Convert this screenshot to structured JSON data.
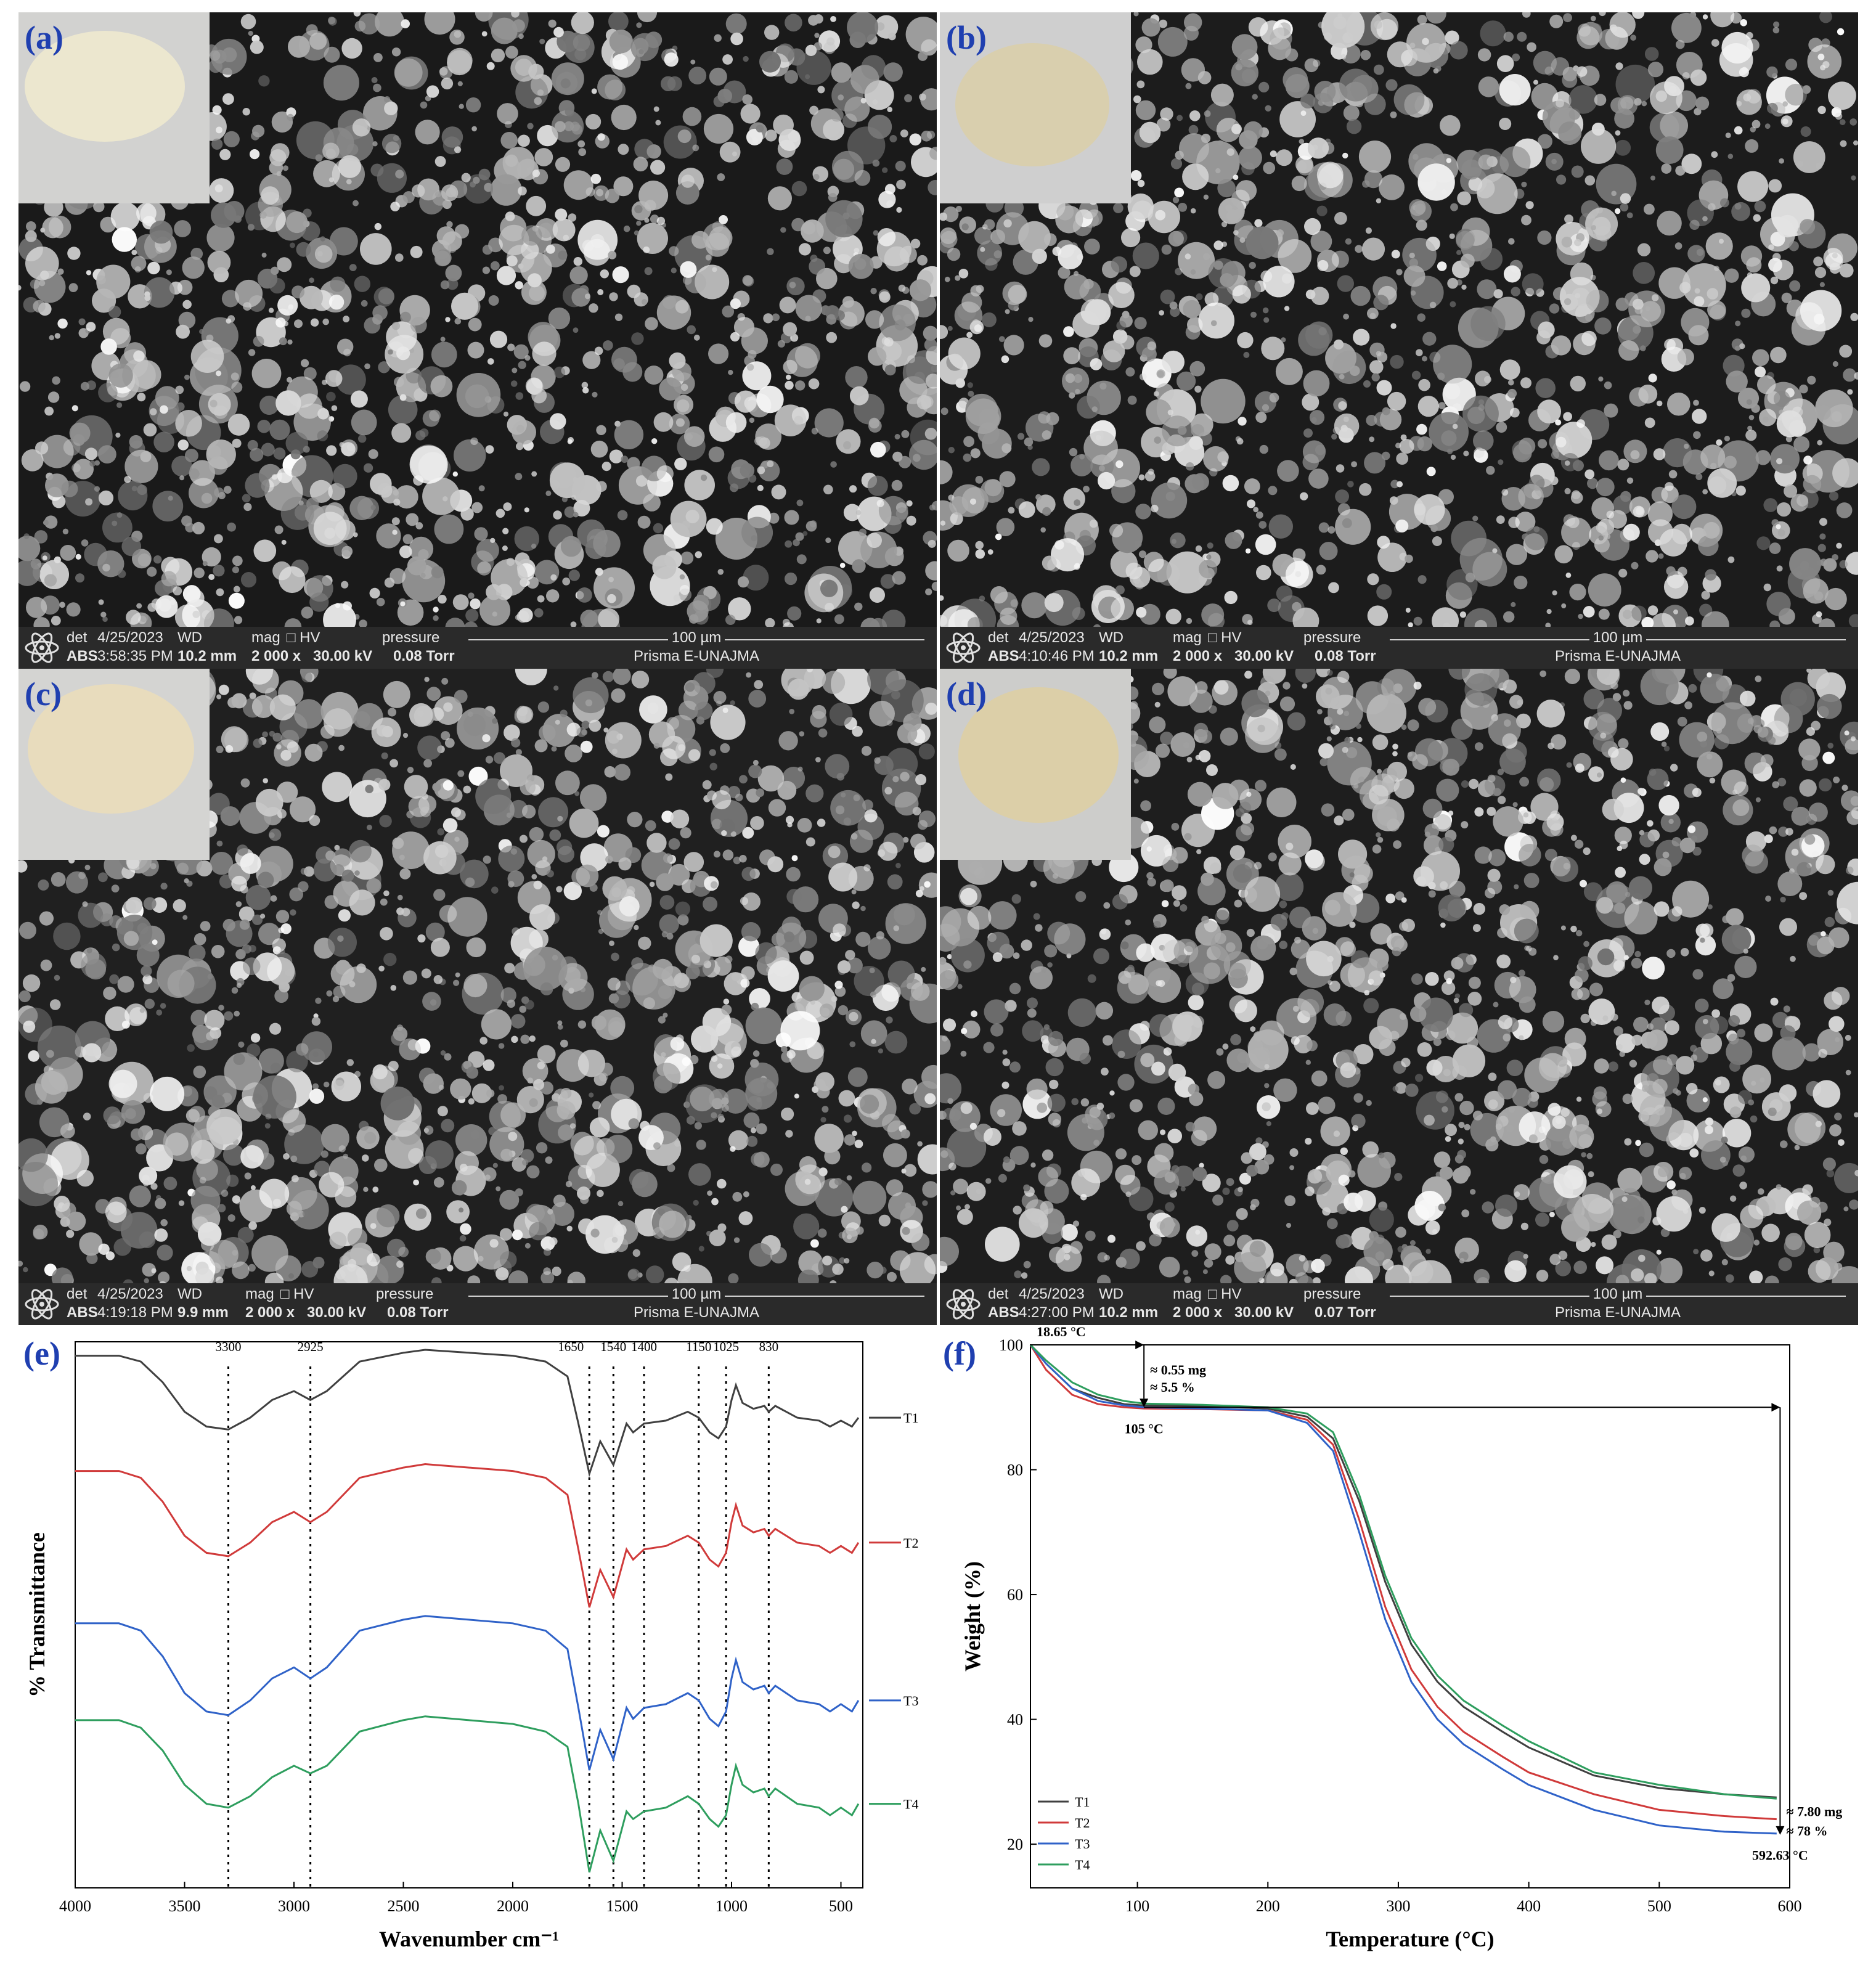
{
  "sem_panels": [
    {
      "label": "(a)",
      "det_h": "det",
      "date": "4/25/2023",
      "wd_h": "WD",
      "mag_h": "mag",
      "hv_h": "HV",
      "pressure_h": "pressure",
      "det": "ABS",
      "time": "3:58:35 PM",
      "wd": "10.2 mm",
      "mag": "2 000 x",
      "hv": "30.00 kV",
      "pressure": "0.08 Torr",
      "scale": "100 µm",
      "instrument": "Prisma E-UNAJMA"
    },
    {
      "label": "(b)",
      "det_h": "det",
      "date": "4/25/2023",
      "wd_h": "WD",
      "mag_h": "mag",
      "hv_h": "HV",
      "pressure_h": "pressure",
      "det": "ABS",
      "time": "4:10:46 PM",
      "wd": "10.2 mm",
      "mag": "2 000 x",
      "hv": "30.00 kV",
      "pressure": "0.08 Torr",
      "scale": "100 µm",
      "instrument": "Prisma E-UNAJMA"
    },
    {
      "label": "(c)",
      "det_h": "det",
      "date": "4/25/2023",
      "wd_h": "WD",
      "mag_h": "mag",
      "hv_h": "HV",
      "pressure_h": "pressure",
      "det": "ABS",
      "time": "4:19:18 PM",
      "wd": "9.9 mm",
      "mag": "2 000 x",
      "hv": "30.00 kV",
      "pressure": "0.08 Torr",
      "scale": "100 µm",
      "instrument": "Prisma E-UNAJMA"
    },
    {
      "label": "(d)",
      "det_h": "det",
      "date": "4/25/2023",
      "wd_h": "WD",
      "mag_h": "mag",
      "hv_h": "HV",
      "pressure_h": "pressure",
      "det": "ABS",
      "time": "4:27:00 PM",
      "wd": "10.2 mm",
      "mag": "2 000 x",
      "hv": "30.00 kV",
      "pressure": "0.07 Torr",
      "scale": "100 µm",
      "instrument": "Prisma E-UNAJMA"
    }
  ],
  "chart_data": [
    {
      "panel_label": "(e)",
      "type": "line",
      "xlabel": "Wavenumber cm⁻¹",
      "ylabel": "% Transmittance",
      "xlim": [
        4000,
        400
      ],
      "x_reversed": true,
      "xticks": [
        4000,
        3500,
        3000,
        2500,
        2000,
        1500,
        1000,
        500
      ],
      "reference_lines": [
        3300,
        2925,
        1650,
        1540,
        1400,
        1150,
        1025,
        830
      ],
      "reference_labels": [
        "3300",
        "2925",
        "1650",
        "1540",
        "1400",
        "1150",
        "1025",
        "830"
      ],
      "series": [
        {
          "name": "T1",
          "color": "#404040",
          "offset": 0,
          "x": [
            4000,
            3800,
            3700,
            3600,
            3500,
            3400,
            3300,
            3200,
            3100,
            3000,
            2925,
            2850,
            2700,
            2500,
            2400,
            2200,
            2000,
            1850,
            1750,
            1700,
            1650,
            1600,
            1540,
            1480,
            1450,
            1400,
            1300,
            1200,
            1150,
            1100,
            1060,
            1025,
            1000,
            980,
            950,
            900,
            850,
            830,
            800,
            700,
            600,
            550,
            500,
            450,
            420
          ],
          "y": [
            95,
            95,
            93,
            86,
            76,
            71,
            70,
            74,
            80,
            83,
            80,
            83,
            93,
            96,
            97,
            96,
            95,
            93,
            88,
            72,
            55,
            66,
            58,
            72,
            69,
            72,
            73,
            76,
            74,
            69,
            67,
            71,
            80,
            85,
            79,
            77,
            78,
            76,
            78,
            74,
            73,
            71,
            73,
            71,
            74
          ]
        },
        {
          "name": "T2",
          "color": "#d03a3a",
          "offset": 0,
          "x": [
            4000,
            3800,
            3700,
            3600,
            3500,
            3400,
            3300,
            3200,
            3100,
            3000,
            2925,
            2850,
            2700,
            2500,
            2400,
            2200,
            2000,
            1850,
            1750,
            1700,
            1650,
            1600,
            1540,
            1480,
            1450,
            1400,
            1300,
            1200,
            1150,
            1100,
            1060,
            1025,
            1000,
            980,
            950,
            900,
            850,
            830,
            800,
            700,
            600,
            550,
            500,
            450,
            420
          ],
          "y": [
            94,
            94,
            92,
            85,
            75,
            70,
            69,
            73,
            79,
            82,
            79,
            82,
            92,
            95,
            96,
            95,
            94,
            92,
            87,
            71,
            54,
            65,
            57,
            71,
            68,
            71,
            72,
            75,
            73,
            68,
            66,
            70,
            79,
            84,
            78,
            76,
            77,
            75,
            77,
            73,
            72,
            70,
            72,
            70,
            73
          ]
        },
        {
          "name": "T3",
          "color": "#2f62c8",
          "offset": 0,
          "x": [
            4000,
            3800,
            3700,
            3600,
            3500,
            3400,
            3300,
            3200,
            3100,
            3000,
            2925,
            2850,
            2700,
            2500,
            2400,
            2200,
            2000,
            1850,
            1750,
            1700,
            1650,
            1600,
            1540,
            1480,
            1450,
            1400,
            1300,
            1200,
            1150,
            1100,
            1060,
            1025,
            1000,
            980,
            950,
            900,
            850,
            830,
            800,
            700,
            600,
            550,
            500,
            450,
            420
          ],
          "y": [
            93,
            93,
            91,
            84,
            74,
            69,
            68,
            72,
            78,
            81,
            78,
            81,
            91,
            94,
            95,
            94,
            93,
            91,
            86,
            70,
            53,
            64,
            56,
            70,
            67,
            70,
            71,
            74,
            72,
            67,
            65,
            69,
            78,
            83,
            77,
            75,
            76,
            74,
            76,
            72,
            71,
            69,
            71,
            69,
            72
          ]
        },
        {
          "name": "T4",
          "color": "#2e9e5e",
          "offset": 0,
          "x": [
            4000,
            3800,
            3700,
            3600,
            3500,
            3400,
            3300,
            3200,
            3100,
            3000,
            2925,
            2850,
            2700,
            2500,
            2400,
            2200,
            2000,
            1850,
            1750,
            1700,
            1650,
            1600,
            1540,
            1480,
            1450,
            1400,
            1300,
            1200,
            1150,
            1100,
            1060,
            1025,
            1000,
            980,
            950,
            900,
            850,
            830,
            800,
            700,
            600,
            550,
            500,
            450,
            420
          ],
          "y": [
            92,
            92,
            90,
            84,
            75,
            70,
            69,
            72,
            77,
            80,
            78,
            80,
            89,
            92,
            93,
            92,
            91,
            89,
            85,
            70,
            52,
            63,
            55,
            68,
            66,
            68,
            69,
            72,
            70,
            66,
            64,
            67,
            75,
            80,
            75,
            73,
            74,
            72,
            74,
            70,
            69,
            67,
            69,
            67,
            70
          ]
        }
      ]
    },
    {
      "panel_label": "(f)",
      "type": "line",
      "xlabel": "Temperature (°C)",
      "ylabel": "Weight (%)",
      "xlim": [
        18,
        600
      ],
      "ylim": [
        13,
        100
      ],
      "xticks": [
        100,
        200,
        300,
        400,
        500,
        600
      ],
      "yticks": [
        20,
        40,
        60,
        80,
        100
      ],
      "legend": "bottom-left",
      "annotations": {
        "start_temp": "18.65 °C",
        "loss_mg": "≈ 0.55 mg",
        "loss_pct": "≈ 5.5 %",
        "mid_temp": "105 °C",
        "end_mg": "≈ 7.80 mg",
        "end_pct": "≈ 78 %",
        "end_temp": "592.63 °C"
      },
      "series": [
        {
          "name": "T1",
          "color": "#404040",
          "x": [
            18,
            30,
            50,
            70,
            90,
            105,
            150,
            200,
            230,
            250,
            270,
            290,
            310,
            330,
            350,
            380,
            400,
            450,
            500,
            550,
            590
          ],
          "y": [
            100,
            97,
            93,
            91.5,
            90.5,
            90.3,
            90.2,
            89.8,
            88.5,
            85,
            75,
            62,
            52,
            46,
            42,
            38,
            35.5,
            31,
            29,
            28,
            27.5
          ]
        },
        {
          "name": "T2",
          "color": "#d03a3a",
          "x": [
            18,
            30,
            50,
            70,
            90,
            105,
            150,
            200,
            230,
            250,
            270,
            290,
            310,
            330,
            350,
            380,
            400,
            450,
            500,
            550,
            590
          ],
          "y": [
            100,
            96,
            92,
            90.5,
            90,
            89.8,
            89.7,
            89.5,
            88,
            84,
            72,
            58,
            48,
            42,
            38,
            34,
            31.5,
            28,
            25.5,
            24.5,
            24
          ]
        },
        {
          "name": "T3",
          "color": "#2f62c8",
          "x": [
            18,
            30,
            50,
            70,
            90,
            105,
            150,
            200,
            230,
            250,
            270,
            290,
            310,
            330,
            350,
            380,
            400,
            450,
            500,
            550,
            590
          ],
          "y": [
            100,
            97,
            93,
            91,
            90.3,
            90,
            89.8,
            89.5,
            87.5,
            83,
            70,
            56,
            46,
            40,
            36,
            32,
            29.5,
            25.5,
            23,
            22,
            21.7
          ]
        },
        {
          "name": "T4",
          "color": "#2e9e5e",
          "x": [
            18,
            30,
            50,
            70,
            90,
            105,
            150,
            200,
            230,
            250,
            270,
            290,
            310,
            330,
            350,
            380,
            400,
            450,
            500,
            550,
            590
          ],
          "y": [
            100,
            97.5,
            94,
            92,
            91,
            90.6,
            90.4,
            90,
            89,
            86,
            76,
            63,
            53,
            47,
            43,
            39,
            36.5,
            31.5,
            29.5,
            28,
            27.3
          ]
        }
      ]
    }
  ]
}
